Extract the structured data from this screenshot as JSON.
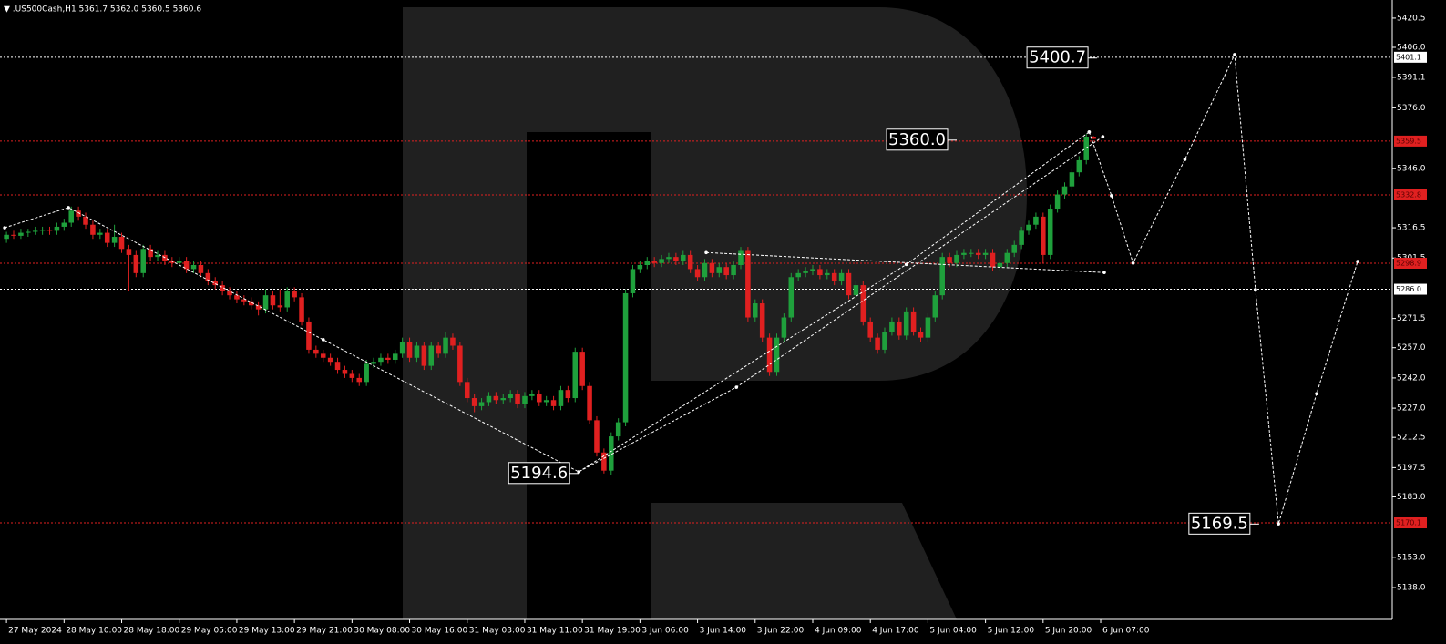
{
  "chart_data": {
    "type": "candlestick",
    "title": "▼ .US500Cash,H1  5361.7 5362.0 5360.5 5360.6",
    "bull_color": "#1fa03c",
    "bear_color": "#e02020",
    "xlim": [
      -0.9,
      192.5
    ],
    "ylim": [
      5122.2,
      5429.5
    ],
    "xticks": [
      {
        "value": 0,
        "label": "27 May 2024"
      },
      {
        "value": 8,
        "label": "28 May 10:00"
      },
      {
        "value": 16,
        "label": "28 May 18:00"
      },
      {
        "value": 24,
        "label": "29 May 05:00"
      },
      {
        "value": 32,
        "label": "29 May 13:00"
      },
      {
        "value": 40,
        "label": "29 May 21:00"
      },
      {
        "value": 48,
        "label": "30 May 08:00"
      },
      {
        "value": 56,
        "label": "30 May 16:00"
      },
      {
        "value": 64,
        "label": "31 May 03:00"
      },
      {
        "value": 72,
        "label": "31 May 11:00"
      },
      {
        "value": 80,
        "label": "31 May 19:00"
      },
      {
        "value": 88,
        "label": "3 Jun 06:00"
      },
      {
        "value": 96,
        "label": "3 Jun 14:00"
      },
      {
        "value": 104,
        "label": "3 Jun 22:00"
      },
      {
        "value": 112,
        "label": "4 Jun 09:00"
      },
      {
        "value": 120,
        "label": "4 Jun 17:00"
      },
      {
        "value": 128,
        "label": "5 Jun 04:00"
      },
      {
        "value": 136,
        "label": "5 Jun 12:00"
      },
      {
        "value": 144,
        "label": "5 Jun 20:00"
      },
      {
        "value": 152,
        "label": "6 Jun 07:00"
      }
    ],
    "yticks": [
      5420.5,
      {
        "value": 5406.0,
        "label": "5406.0"
      },
      5391.1,
      {
        "value": 5376.0,
        "label": "5376.0"
      },
      {
        "value": 5346.0,
        "label": "5346.0"
      },
      5316.5,
      5301.5,
      5271.5,
      {
        "value": 5257.0,
        "label": "5257.0"
      },
      {
        "value": 5242.0,
        "label": "5242.0"
      },
      {
        "value": 5227.0,
        "label": "5227.0"
      },
      5212.5,
      5197.5,
      {
        "value": 5183.0,
        "label": "5183.0"
      },
      {
        "value": 5153.0,
        "label": "5153.0"
      },
      {
        "value": 5138.0,
        "label": "5138.0"
      }
    ],
    "candles": [
      [
        5311,
        5314.5,
        5309,
        5313
      ],
      [
        5313,
        5315,
        5311,
        5312.5
      ],
      [
        5312.5,
        5316,
        5311,
        5314
      ],
      [
        5314,
        5316,
        5312,
        5314.5
      ],
      [
        5314.5,
        5317,
        5313,
        5315
      ],
      [
        5315,
        5317,
        5313,
        5315.5
      ],
      [
        5315.5,
        5317,
        5313,
        5315
      ],
      [
        5315,
        5319,
        5313,
        5317
      ],
      [
        5317,
        5321,
        5315,
        5319
      ],
      [
        5319,
        5327,
        5317,
        5325
      ],
      [
        5325,
        5327,
        5320,
        5322
      ],
      [
        5322,
        5324,
        5316,
        5318
      ],
      [
        5318,
        5320,
        5311,
        5313
      ],
      [
        5313,
        5316,
        5311,
        5314
      ],
      [
        5314,
        5316,
        5307,
        5309
      ],
      [
        5309,
        5318,
        5307,
        5312
      ],
      [
        5312,
        5314,
        5304,
        5306
      ],
      [
        5306,
        5308,
        5285,
        5303
      ],
      [
        5303,
        5305,
        5292,
        5294
      ],
      [
        5294,
        5308,
        5292,
        5306
      ],
      [
        5306,
        5308,
        5300,
        5302
      ],
      [
        5302,
        5305,
        5300,
        5303
      ],
      [
        5303,
        5305,
        5298,
        5300
      ],
      [
        5300,
        5302,
        5297,
        5299
      ],
      [
        5299,
        5302,
        5297,
        5300
      ],
      [
        5300,
        5302,
        5294,
        5296
      ],
      [
        5296,
        5300,
        5294,
        5298
      ],
      [
        5298,
        5300,
        5292,
        5294
      ],
      [
        5294,
        5296,
        5288,
        5290
      ],
      [
        5290,
        5292,
        5286,
        5288
      ],
      [
        5288,
        5290,
        5283,
        5285
      ],
      [
        5285,
        5287,
        5281,
        5283
      ],
      [
        5283,
        5285,
        5279,
        5281
      ],
      [
        5281,
        5283,
        5278,
        5280
      ],
      [
        5280,
        5282,
        5276,
        5278
      ],
      [
        5278,
        5280,
        5273,
        5276
      ],
      [
        5276,
        5286,
        5274,
        5283
      ],
      [
        5283,
        5285,
        5276,
        5278
      ],
      [
        5278,
        5286,
        5275,
        5277
      ],
      [
        5277,
        5287,
        5275,
        5285
      ],
      [
        5285,
        5287,
        5280,
        5282
      ],
      [
        5282,
        5284,
        5268,
        5270
      ],
      [
        5270,
        5272,
        5254,
        5256
      ],
      [
        5256,
        5258,
        5252,
        5254
      ],
      [
        5254,
        5256,
        5250,
        5252
      ],
      [
        5252,
        5254,
        5248,
        5250
      ],
      [
        5250,
        5252,
        5244,
        5246
      ],
      [
        5246,
        5248,
        5242,
        5244
      ],
      [
        5244,
        5246,
        5240,
        5242
      ],
      [
        5242,
        5244,
        5238,
        5240
      ],
      [
        5240,
        5251,
        5238,
        5249
      ],
      [
        5249,
        5252,
        5247,
        5250
      ],
      [
        5250,
        5254,
        5248,
        5252
      ],
      [
        5252,
        5254,
        5249,
        5251
      ],
      [
        5251,
        5256,
        5249,
        5254
      ],
      [
        5254,
        5262,
        5252,
        5260
      ],
      [
        5260,
        5262,
        5250,
        5252
      ],
      [
        5252,
        5260,
        5250,
        5258
      ],
      [
        5258,
        5260,
        5246,
        5248
      ],
      [
        5248,
        5260,
        5246,
        5258
      ],
      [
        5258,
        5260,
        5252,
        5254
      ],
      [
        5254,
        5265,
        5252,
        5262
      ],
      [
        5262,
        5264,
        5256,
        5258
      ],
      [
        5258,
        5260,
        5238,
        5240
      ],
      [
        5240,
        5242,
        5230,
        5232
      ],
      [
        5232,
        5234,
        5225,
        5228
      ],
      [
        5228,
        5232,
        5226,
        5230
      ],
      [
        5230,
        5235,
        5228,
        5233
      ],
      [
        5233,
        5235,
        5229,
        5231
      ],
      [
        5231,
        5234,
        5229,
        5232
      ],
      [
        5232,
        5236,
        5230,
        5234
      ],
      [
        5234,
        5236,
        5227,
        5229
      ],
      [
        5229,
        5235,
        5227,
        5233
      ],
      [
        5233,
        5236,
        5231,
        5234
      ],
      [
        5234,
        5236,
        5228,
        5230
      ],
      [
        5230,
        5233,
        5228,
        5231
      ],
      [
        5231,
        5233,
        5226,
        5228
      ],
      [
        5228,
        5238,
        5226,
        5236
      ],
      [
        5236,
        5238,
        5230,
        5232
      ],
      [
        5232,
        5257,
        5230,
        5255
      ],
      [
        5255,
        5257,
        5236,
        5238
      ],
      [
        5238,
        5240,
        5219,
        5221
      ],
      [
        5221,
        5223,
        5203,
        5205
      ],
      [
        5205,
        5207,
        5194.6,
        5196
      ],
      [
        5196,
        5215,
        5194,
        5213
      ],
      [
        5213,
        5222,
        5211,
        5220
      ],
      [
        5220,
        5286,
        5218,
        5284
      ],
      [
        5284,
        5298,
        5282,
        5296
      ],
      [
        5296,
        5300,
        5294,
        5298
      ],
      [
        5298,
        5302,
        5296,
        5300
      ],
      [
        5300,
        5302,
        5297,
        5299
      ],
      [
        5299,
        5303,
        5297,
        5301
      ],
      [
        5301,
        5304,
        5299,
        5302
      ],
      [
        5302,
        5304,
        5298,
        5300
      ],
      [
        5300,
        5305,
        5298,
        5303
      ],
      [
        5303,
        5305,
        5294,
        5296
      ],
      [
        5296,
        5298,
        5290,
        5292
      ],
      [
        5292,
        5301,
        5290,
        5299
      ],
      [
        5299,
        5301,
        5292,
        5294
      ],
      [
        5294,
        5299,
        5292,
        5297
      ],
      [
        5297,
        5299,
        5291,
        5293
      ],
      [
        5293,
        5300,
        5291,
        5298
      ],
      [
        5298,
        5307,
        5296,
        5305
      ],
      [
        5305,
        5307,
        5270,
        5272
      ],
      [
        5272,
        5281,
        5270,
        5279
      ],
      [
        5279,
        5281,
        5260,
        5262
      ],
      [
        5262,
        5264,
        5243,
        5245
      ],
      [
        5245,
        5264,
        5243,
        5262
      ],
      [
        5262,
        5274,
        5260,
        5272
      ],
      [
        5272,
        5294,
        5270,
        5292
      ],
      [
        5292,
        5296,
        5290,
        5294
      ],
      [
        5294,
        5297,
        5292,
        5295
      ],
      [
        5295,
        5298,
        5293,
        5296
      ],
      [
        5296,
        5298,
        5291,
        5293
      ],
      [
        5293,
        5296,
        5291,
        5294
      ],
      [
        5294,
        5296,
        5288,
        5290
      ],
      [
        5290,
        5296,
        5288,
        5294
      ],
      [
        5294,
        5296,
        5281,
        5283
      ],
      [
        5283,
        5290,
        5281,
        5288
      ],
      [
        5288,
        5290,
        5268,
        5270
      ],
      [
        5270,
        5272,
        5260,
        5262
      ],
      [
        5262,
        5264,
        5254,
        5256
      ],
      [
        5256,
        5267,
        5254,
        5265
      ],
      [
        5265,
        5272,
        5263,
        5270
      ],
      [
        5270,
        5272,
        5261,
        5263
      ],
      [
        5263,
        5277,
        5261,
        5275
      ],
      [
        5275,
        5277,
        5263,
        5265
      ],
      [
        5265,
        5267,
        5260,
        5262
      ],
      [
        5262,
        5274,
        5260,
        5272
      ],
      [
        5272,
        5285,
        5270,
        5283
      ],
      [
        5283,
        5304,
        5281,
        5302
      ],
      [
        5302,
        5304,
        5297,
        5299
      ],
      [
        5299,
        5305,
        5297,
        5303
      ],
      [
        5303,
        5306,
        5301,
        5304
      ],
      [
        5304,
        5306,
        5302,
        5304
      ],
      [
        5304,
        5306,
        5301,
        5303
      ],
      [
        5303,
        5306,
        5301,
        5304
      ],
      [
        5304,
        5306,
        5295,
        5297
      ],
      [
        5297,
        5301,
        5295,
        5299
      ],
      [
        5299,
        5306,
        5297,
        5304
      ],
      [
        5304,
        5310,
        5302,
        5308
      ],
      [
        5308,
        5317,
        5306,
        5315
      ],
      [
        5315,
        5320,
        5313,
        5318
      ],
      [
        5318,
        5324,
        5316,
        5322
      ],
      [
        5322,
        5324,
        5299,
        5303
      ],
      [
        5303,
        5328,
        5301,
        5326
      ],
      [
        5326,
        5335,
        5324,
        5333
      ],
      [
        5333,
        5339,
        5331,
        5337
      ],
      [
        5337,
        5346,
        5335,
        5344
      ],
      [
        5344,
        5352,
        5342,
        5350
      ],
      [
        5350,
        5363,
        5348,
        5361.7
      ],
      [
        5361.7,
        5362.0,
        5360.5,
        5360.6
      ]
    ],
    "hlines": [
      {
        "value": 5401.1,
        "label": "5401.1",
        "color": "#ffffff"
      },
      {
        "value": 5359.5,
        "label": "5359.5",
        "color": "#e02020"
      },
      {
        "value": 5332.8,
        "label": "5332.8",
        "color": "#e02020"
      },
      {
        "value": 5298.9,
        "label": "5298.9",
        "color": "#e02020"
      },
      {
        "value": 5286.0,
        "label": "5286.0",
        "color": "#ffffff"
      },
      {
        "value": 5170.1,
        "label": "5170.1",
        "color": "#e02020"
      }
    ],
    "lines": [
      {
        "x": [
          -0.25,
          8.6,
          44,
          79.5,
          101.4,
          152.3
        ],
        "y": [
          5316.5,
          5326.5,
          5261,
          5195.4,
          5237.4,
          5361.7
        ]
      },
      {
        "x": [
          79.5,
          125,
          150.4
        ],
        "y": [
          5195.4,
          5298.3,
          5364.0
        ]
      },
      {
        "x": [
          97.2,
          152.5
        ],
        "y": [
          5304.2,
          5294.3
        ]
      },
      {
        "x": [
          150.4,
          153.5,
          156.5,
          163.7,
          170.6,
          173.5,
          176.7,
          182.0,
          187.7
        ],
        "y": [
          5364.0,
          5332.4,
          5299.0,
          5350.4,
          5402.4,
          5285.8,
          5169.6,
          5234.2,
          5299.8
        ]
      }
    ],
    "annotations": [
      {
        "x": 151.5,
        "value": 5400.7,
        "label": "5400.7"
      },
      {
        "x": 132,
        "value": 5360.0,
        "label": "5360.0"
      },
      {
        "x": 79.5,
        "value": 5194.6,
        "label": "5194.6"
      },
      {
        "x": 174,
        "value": 5169.5,
        "label": "5169.5"
      }
    ]
  }
}
